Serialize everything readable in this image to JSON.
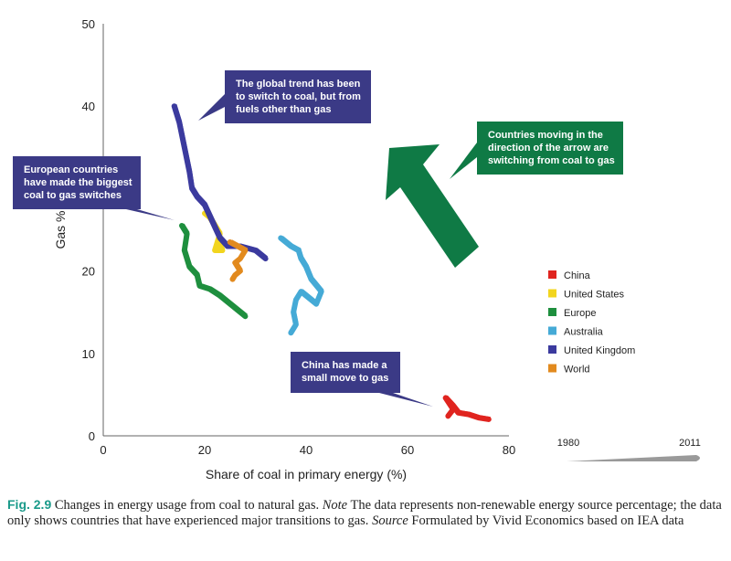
{
  "chart_data": {
    "type": "line",
    "title": "",
    "xlabel": "Share of coal in primary energy (%)",
    "ylabel": "Gas %",
    "xlim": [
      0,
      80
    ],
    "ylim": [
      0,
      50
    ],
    "xticks": [
      0,
      20,
      40,
      60,
      80
    ],
    "yticks": [
      0,
      10,
      20,
      30,
      40,
      50
    ],
    "grid": false,
    "legend_position": "right",
    "series": [
      {
        "name": "China",
        "color": "#e0241f",
        "x": [
          68,
          69,
          67.5,
          69,
          70,
          72,
          74,
          76
        ],
        "y": [
          2.4,
          3.2,
          4.6,
          3.6,
          2.8,
          2.6,
          2.2,
          2.0
        ]
      },
      {
        "name": "United States",
        "color": "#f2d51e",
        "x": [
          20,
          21,
          22,
          23,
          22.5,
          23.5,
          22,
          22.5,
          23,
          22.5
        ],
        "y": [
          27,
          26.5,
          25.5,
          24.5,
          23.5,
          22.5,
          22.5,
          23.5,
          24,
          25
        ]
      },
      {
        "name": "Europe",
        "color": "#1e8f3e",
        "x": [
          15.5,
          16.5,
          16,
          17,
          18.5,
          19,
          21,
          23,
          25,
          27,
          28
        ],
        "y": [
          25.5,
          24.5,
          22.5,
          20.5,
          19.5,
          18.2,
          17.8,
          17,
          16,
          15,
          14.5
        ]
      },
      {
        "name": "Australia",
        "color": "#45aad6",
        "x": [
          35,
          37,
          38.5,
          39,
          40,
          41,
          43,
          42,
          39,
          38,
          37.5,
          38,
          37
        ],
        "y": [
          24,
          23,
          22.5,
          21.5,
          20.5,
          19,
          17.5,
          16,
          17.5,
          16.5,
          15,
          13.5,
          12.5
        ]
      },
      {
        "name": "United Kingdom",
        "color": "#3b3a9e",
        "x": [
          14,
          15,
          16,
          17,
          17.5,
          18.5,
          20,
          21.5,
          23,
          24.5,
          27,
          30,
          32
        ],
        "y": [
          40,
          38,
          35,
          32,
          30,
          29,
          28,
          26,
          24,
          23,
          23,
          22.5,
          21.5
        ]
      },
      {
        "name": "World",
        "color": "#e28a1e",
        "x": [
          25,
          26.5,
          28,
          27,
          26,
          27,
          26,
          25.5
        ],
        "y": [
          23.5,
          23,
          22.5,
          21.5,
          21,
          20,
          19.5,
          19
        ]
      }
    ],
    "annotations": [
      {
        "id": "uk",
        "text": [
          "The global trend has been",
          "to switch to coal, but from",
          "fuels other than gas"
        ],
        "color": "#3b3a86"
      },
      {
        "id": "europe",
        "text": [
          "European countries",
          "have made the biggest",
          "coal to gas switches"
        ],
        "color": "#3b3a86"
      },
      {
        "id": "arrow",
        "text": [
          "Countries moving in the",
          "direction of the arrow are",
          "switching from coal to gas"
        ],
        "color": "#0f7a45"
      },
      {
        "id": "china",
        "text": [
          "China has made a",
          "small move to gas"
        ],
        "color": "#3b3a86"
      }
    ],
    "time_scale": {
      "start": "1980",
      "end": "2011"
    }
  },
  "caption": {
    "fig_label": "Fig. 2.9",
    "text1": " Changes in energy usage from coal to natural gas. ",
    "note_label": "Note",
    "text2": " The data represents non-renewable energy source percentage; the data only shows countries that have experienced major transitions to gas. ",
    "source_label": "Source",
    "text3": " Formulated by Vivid Economics based on IEA data"
  }
}
